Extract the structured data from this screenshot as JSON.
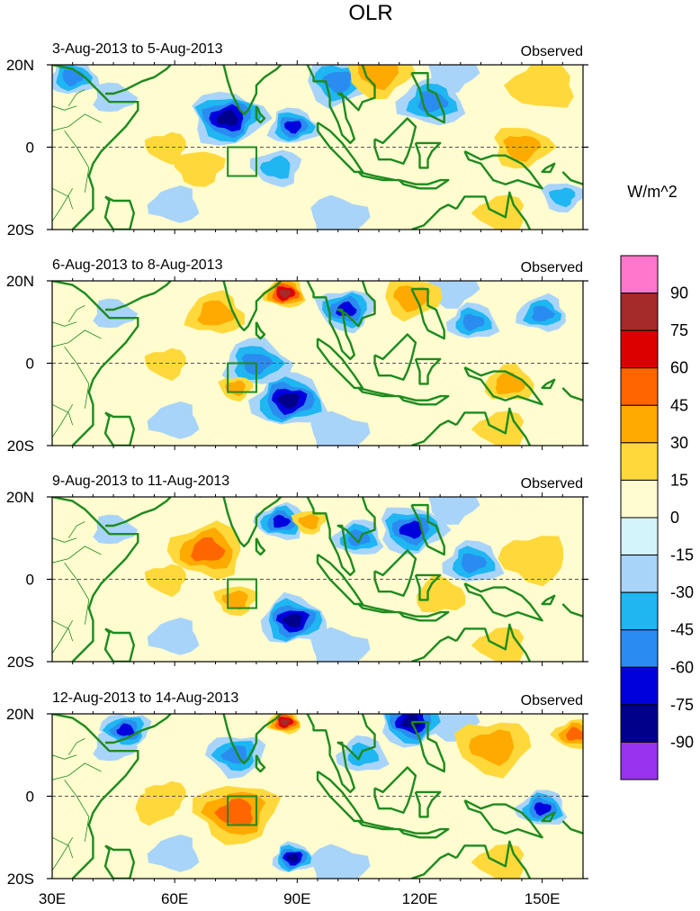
{
  "chart_data": {
    "type": "heatmap",
    "title": "OLR",
    "units_label": "W/m^2",
    "x_ticks": [
      "30E",
      "60E",
      "90E",
      "120E",
      "150E"
    ],
    "x_tick_values": [
      30,
      60,
      90,
      120,
      150
    ],
    "xlim": [
      30,
      160
    ],
    "y_ticks": [
      "20N",
      "0",
      "20S"
    ],
    "y_tick_values": [
      20,
      0,
      -20
    ],
    "ylim": [
      -20,
      20
    ],
    "legend_position": "right",
    "colorbar": {
      "labels": [
        "90",
        "75",
        "60",
        "45",
        "30",
        "15",
        "0",
        "-15",
        "-30",
        "-45",
        "-60",
        "-75",
        "-90"
      ],
      "colors": [
        "#ff77cc",
        "#a52a2a",
        "#dd0000",
        "#ff6600",
        "#ffaa00",
        "#ffd93b",
        "#fffcd0",
        "#d4f4fb",
        "#a9d4f9",
        "#1fb6f2",
        "#2a8cf0",
        "#0000dd",
        "#00008b",
        "#9933ee"
      ]
    },
    "box_region": {
      "lon_min": 73,
      "lon_max": 80,
      "lat_min": -7,
      "lat_max": 0
    },
    "panels": [
      {
        "period": "3-Aug-2013 to 5-Aug-2013",
        "label": "Observed",
        "features": [
          {
            "lon": 73,
            "lat": 7,
            "r": 9,
            "value": -75
          },
          {
            "lon": 89,
            "lat": 5,
            "r": 6,
            "value": -60
          },
          {
            "lon": 100,
            "lat": 16,
            "r": 8,
            "value": -45
          },
          {
            "lon": 123,
            "lat": 11,
            "r": 8,
            "value": -45
          },
          {
            "lon": 35,
            "lat": 17,
            "r": 6,
            "value": -45
          },
          {
            "lon": 85,
            "lat": -5,
            "r": 6,
            "value": -30
          },
          {
            "lon": 155,
            "lat": -12,
            "r": 5,
            "value": -30
          },
          {
            "lon": 110,
            "lat": 18,
            "r": 8,
            "value": 30
          },
          {
            "lon": 145,
            "lat": 0,
            "r": 7,
            "value": 30
          },
          {
            "lon": 66,
            "lat": -5,
            "r": 6,
            "value": 15
          },
          {
            "lon": 150,
            "lat": 15,
            "r": 8,
            "value": 15
          }
        ]
      },
      {
        "period": "6-Aug-2013 to 8-Aug-2013",
        "label": "Observed",
        "features": [
          {
            "lon": 88,
            "lat": -9,
            "r": 9,
            "value": -75
          },
          {
            "lon": 102,
            "lat": 13,
            "r": 7,
            "value": -60
          },
          {
            "lon": 80,
            "lat": 0,
            "r": 8,
            "value": -45
          },
          {
            "lon": 133,
            "lat": 10,
            "r": 6,
            "value": -45
          },
          {
            "lon": 150,
            "lat": 12,
            "r": 6,
            "value": -45
          },
          {
            "lon": 87,
            "lat": 17,
            "r": 5,
            "value": 75
          },
          {
            "lon": 70,
            "lat": 12,
            "r": 7,
            "value": 30
          },
          {
            "lon": 118,
            "lat": 16,
            "r": 7,
            "value": 30
          },
          {
            "lon": 142,
            "lat": -5,
            "r": 6,
            "value": 30
          },
          {
            "lon": 75,
            "lat": -6,
            "r": 4,
            "value": 30
          }
        ]
      },
      {
        "period": "9-Aug-2013 to 11-Aug-2013",
        "label": "Observed",
        "features": [
          {
            "lon": 89,
            "lat": -10,
            "r": 8,
            "value": -75
          },
          {
            "lon": 86,
            "lat": 14,
            "r": 6,
            "value": -60
          },
          {
            "lon": 118,
            "lat": 12,
            "r": 8,
            "value": -60
          },
          {
            "lon": 133,
            "lat": 4,
            "r": 7,
            "value": -45
          },
          {
            "lon": 105,
            "lat": 10,
            "r": 6,
            "value": -45
          },
          {
            "lon": 68,
            "lat": 7,
            "r": 9,
            "value": 45
          },
          {
            "lon": 93,
            "lat": 14,
            "r": 4,
            "value": 30
          },
          {
            "lon": 75,
            "lat": -5,
            "r": 5,
            "value": 30
          },
          {
            "lon": 148,
            "lat": 5,
            "r": 8,
            "value": 15
          },
          {
            "lon": 125,
            "lat": -4,
            "r": 6,
            "value": 15
          }
        ]
      },
      {
        "period": "12-Aug-2013 to 14-Aug-2013",
        "label": "Observed",
        "features": [
          {
            "lon": 118,
            "lat": 18,
            "r": 8,
            "value": -75
          },
          {
            "lon": 89,
            "lat": -15,
            "r": 5,
            "value": -75
          },
          {
            "lon": 75,
            "lat": 10,
            "r": 7,
            "value": -45
          },
          {
            "lon": 48,
            "lat": 16,
            "r": 6,
            "value": -60
          },
          {
            "lon": 150,
            "lat": -3,
            "r": 6,
            "value": -60
          },
          {
            "lon": 106,
            "lat": 10,
            "r": 6,
            "value": -30
          },
          {
            "lon": 75,
            "lat": -4,
            "r": 10,
            "value": 45
          },
          {
            "lon": 87,
            "lat": 18,
            "r": 4,
            "value": 75
          },
          {
            "lon": 138,
            "lat": 12,
            "r": 9,
            "value": 30
          },
          {
            "lon": 158,
            "lat": 15,
            "r": 5,
            "value": 45
          },
          {
            "lon": 55,
            "lat": -3,
            "r": 5,
            "value": 15
          }
        ]
      }
    ]
  }
}
